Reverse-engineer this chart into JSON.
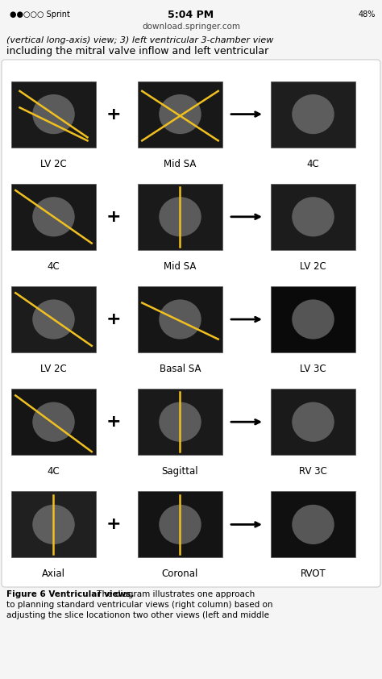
{
  "bg_color": "#f5f5f5",
  "status_bar": {
    "text": "5:04 PM",
    "left": "●●○○○ Sprint ✦",
    "right": "✦ 48%",
    "subtitle": "download.springer.com"
  },
  "header_text": "(vertical long-axis) view; 3) left ventricular 3-chamber view\nincluding the mitral valve inflow and left ventricular",
  "rows": [
    {
      "left_label": "LV 2C",
      "mid_label": "Mid SA",
      "right_label": "4C"
    },
    {
      "left_label": "4C",
      "mid_label": "Mid SA",
      "right_label": "LV 2C"
    },
    {
      "left_label": "LV 2C",
      "mid_label": "Basal SA",
      "right_label": "LV 3C"
    },
    {
      "left_label": "4C",
      "mid_label": "Sagittal",
      "right_label": "RV 3C"
    },
    {
      "left_label": "Axial",
      "mid_label": "Coronal",
      "right_label": "RVOT"
    }
  ],
  "caption_bold": "Figure 6 Ventricular views.",
  "caption_normal": " The diagram illustrates one approach to planning standard ventricular views (right column) based on adjusting the slice locationon two other views (left and middle",
  "white": "#ffffff",
  "black": "#000000",
  "yellow_line": "#f0c020",
  "panel_bg": "#111111"
}
